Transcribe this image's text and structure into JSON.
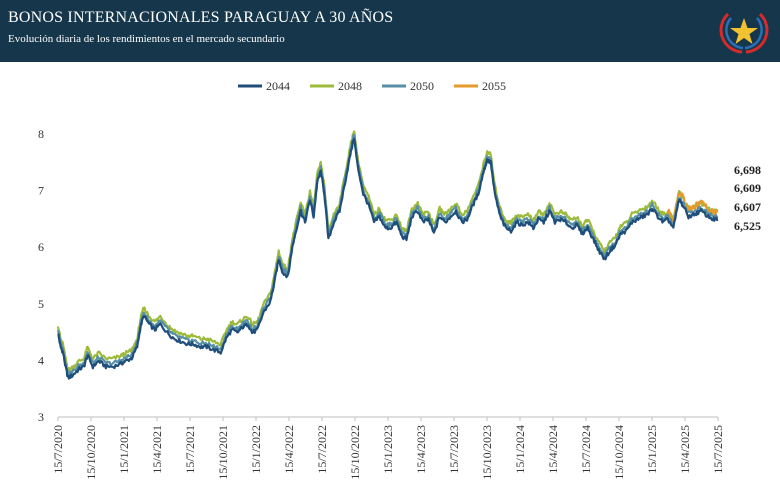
{
  "header": {
    "title": "BONOS INTERNACIONALES PARAGUAY A 30 AÑOS",
    "subtitle": "Evolución diaria de los rendimientos en el mercado secundario"
  },
  "colors": {
    "header_bg": "#16374b",
    "s2044": "#1f4e7a",
    "s2048": "#9dbb3a",
    "s2050": "#5790a6",
    "s2055": "#e69a2b"
  },
  "chart_data": {
    "type": "line",
    "title": "BONOS INTERNACIONALES PARAGUAY A 30 AÑOS",
    "subtitle": "Evolución diaria de los rendimientos en el mercado secundario",
    "xlabel": "",
    "ylabel": "",
    "ylim": [
      3,
      8.3
    ],
    "yticks": [
      3,
      4,
      5,
      6,
      7,
      8
    ],
    "x_tick_labels": [
      "15/7/2020",
      "15/10/2020",
      "15/1/2021",
      "15/4/2021",
      "15/7/2021",
      "15/10/2021",
      "15/1/2022",
      "15/4/2022",
      "15/7/2022",
      "15/10/2022",
      "15/1/2023",
      "15/4/2023",
      "15/7/2023",
      "15/10/2023",
      "15/1/2024",
      "15/4/2024",
      "15/7/2024",
      "15/10/2024",
      "15/1/2025",
      "15/4/2025",
      "15/7/2025"
    ],
    "grid": false,
    "legend_position": "top-center",
    "end_labels": [
      "6,698",
      "6,609",
      "6,607",
      "6,525"
    ],
    "base_path": [
      [
        "2020-07-15",
        4.55
      ],
      [
        "2020-07-22",
        4.3
      ],
      [
        "2020-07-29",
        4.2
      ],
      [
        "2020-08-05",
        3.95
      ],
      [
        "2020-08-12",
        3.75
      ],
      [
        "2020-08-25",
        3.8
      ],
      [
        "2020-09-10",
        3.9
      ],
      [
        "2020-09-25",
        3.95
      ],
      [
        "2020-10-05",
        4.15
      ],
      [
        "2020-10-20",
        3.95
      ],
      [
        "2020-11-05",
        4.05
      ],
      [
        "2020-11-25",
        3.95
      ],
      [
        "2020-12-15",
        3.95
      ],
      [
        "2021-01-05",
        4.0
      ],
      [
        "2021-01-20",
        4.05
      ],
      [
        "2021-02-05",
        4.1
      ],
      [
        "2021-02-20",
        4.3
      ],
      [
        "2021-03-01",
        4.65
      ],
      [
        "2021-03-10",
        4.85
      ],
      [
        "2021-03-25",
        4.7
      ],
      [
        "2021-04-10",
        4.6
      ],
      [
        "2021-04-25",
        4.7
      ],
      [
        "2021-05-15",
        4.55
      ],
      [
        "2021-06-01",
        4.45
      ],
      [
        "2021-06-20",
        4.4
      ],
      [
        "2021-07-10",
        4.35
      ],
      [
        "2021-07-25",
        4.35
      ],
      [
        "2021-08-15",
        4.3
      ],
      [
        "2021-09-01",
        4.3
      ],
      [
        "2021-09-20",
        4.25
      ],
      [
        "2021-10-10",
        4.2
      ],
      [
        "2021-10-25",
        4.45
      ],
      [
        "2021-11-10",
        4.6
      ],
      [
        "2021-11-25",
        4.55
      ],
      [
        "2021-12-10",
        4.65
      ],
      [
        "2021-12-25",
        4.7
      ],
      [
        "2022-01-05",
        4.55
      ],
      [
        "2022-01-20",
        4.6
      ],
      [
        "2022-02-05",
        4.9
      ],
      [
        "2022-02-25",
        5.1
      ],
      [
        "2022-03-10",
        5.5
      ],
      [
        "2022-03-20",
        5.85
      ],
      [
        "2022-04-01",
        5.6
      ],
      [
        "2022-04-15",
        5.55
      ],
      [
        "2022-04-25",
        6.0
      ],
      [
        "2022-05-05",
        6.3
      ],
      [
        "2022-05-20",
        6.7
      ],
      [
        "2022-06-01",
        6.5
      ],
      [
        "2022-06-15",
        6.9
      ],
      [
        "2022-06-25",
        6.6
      ],
      [
        "2022-07-05",
        7.2
      ],
      [
        "2022-07-15",
        7.4
      ],
      [
        "2022-07-25",
        7.0
      ],
      [
        "2022-08-05",
        6.2
      ],
      [
        "2022-08-20",
        6.5
      ],
      [
        "2022-09-05",
        6.7
      ],
      [
        "2022-09-20",
        7.2
      ],
      [
        "2022-10-05",
        7.7
      ],
      [
        "2022-10-15",
        8.0
      ],
      [
        "2022-10-25",
        7.5
      ],
      [
        "2022-11-10",
        7.0
      ],
      [
        "2022-11-25",
        6.8
      ],
      [
        "2022-12-10",
        6.5
      ],
      [
        "2022-12-25",
        6.6
      ],
      [
        "2023-01-10",
        6.4
      ],
      [
        "2023-01-25",
        6.4
      ],
      [
        "2023-02-10",
        6.5
      ],
      [
        "2023-02-25",
        6.25
      ],
      [
        "2023-03-10",
        6.2
      ],
      [
        "2023-03-25",
        6.6
      ],
      [
        "2023-04-10",
        6.7
      ],
      [
        "2023-04-25",
        6.5
      ],
      [
        "2023-05-10",
        6.55
      ],
      [
        "2023-05-25",
        6.3
      ],
      [
        "2023-06-10",
        6.6
      ],
      [
        "2023-06-25",
        6.5
      ],
      [
        "2023-07-10",
        6.6
      ],
      [
        "2023-07-25",
        6.7
      ],
      [
        "2023-08-10",
        6.5
      ],
      [
        "2023-08-25",
        6.55
      ],
      [
        "2023-09-10",
        6.8
      ],
      [
        "2023-09-25",
        7.0
      ],
      [
        "2023-10-10",
        7.4
      ],
      [
        "2023-10-20",
        7.6
      ],
      [
        "2023-10-30",
        7.55
      ],
      [
        "2023-11-10",
        7.0
      ],
      [
        "2023-11-25",
        6.6
      ],
      [
        "2023-12-10",
        6.4
      ],
      [
        "2023-12-25",
        6.35
      ],
      [
        "2024-01-10",
        6.5
      ],
      [
        "2024-01-25",
        6.45
      ],
      [
        "2024-02-10",
        6.5
      ],
      [
        "2024-02-25",
        6.4
      ],
      [
        "2024-03-10",
        6.55
      ],
      [
        "2024-03-25",
        6.5
      ],
      [
        "2024-04-10",
        6.7
      ],
      [
        "2024-04-25",
        6.5
      ],
      [
        "2024-05-10",
        6.55
      ],
      [
        "2024-05-25",
        6.5
      ],
      [
        "2024-06-10",
        6.4
      ],
      [
        "2024-06-25",
        6.45
      ],
      [
        "2024-07-10",
        6.3
      ],
      [
        "2024-07-25",
        6.4
      ],
      [
        "2024-08-10",
        6.2
      ],
      [
        "2024-08-25",
        6.0
      ],
      [
        "2024-09-10",
        5.85
      ],
      [
        "2024-09-25",
        6.0
      ],
      [
        "2024-10-10",
        6.1
      ],
      [
        "2024-10-25",
        6.3
      ],
      [
        "2024-11-10",
        6.35
      ],
      [
        "2024-11-25",
        6.5
      ],
      [
        "2024-12-10",
        6.55
      ],
      [
        "2024-12-25",
        6.6
      ],
      [
        "2025-01-10",
        6.65
      ],
      [
        "2025-01-20",
        6.75
      ],
      [
        "2025-02-05",
        6.6
      ],
      [
        "2025-02-20",
        6.5
      ],
      [
        "2025-03-05",
        6.55
      ],
      [
        "2025-03-20",
        6.4
      ],
      [
        "2025-04-05",
        6.9
      ],
      [
        "2025-04-15",
        6.8
      ],
      [
        "2025-05-01",
        6.6
      ],
      [
        "2025-05-20",
        6.65
      ],
      [
        "2025-06-05",
        6.7
      ],
      [
        "2025-06-25",
        6.6
      ],
      [
        "2025-07-10",
        6.55
      ],
      [
        "2025-07-20",
        6.55
      ]
    ],
    "series": [
      {
        "name": "2044",
        "color": "#1f4e7a",
        "offset": -0.06,
        "start": "2020-07-15",
        "end_value": 6.525
      },
      {
        "name": "2048",
        "color": "#9dbb3a",
        "offset": 0.08,
        "start": "2020-07-15",
        "end_value": 6.609
      },
      {
        "name": "2050",
        "color": "#5790a6",
        "offset": 0.0,
        "start": "2020-07-15",
        "end_value": 6.607
      },
      {
        "name": "2055",
        "color": "#e69a2b",
        "offset": 0.08,
        "start": "2025-03-01",
        "end_value": 6.698
      }
    ]
  }
}
